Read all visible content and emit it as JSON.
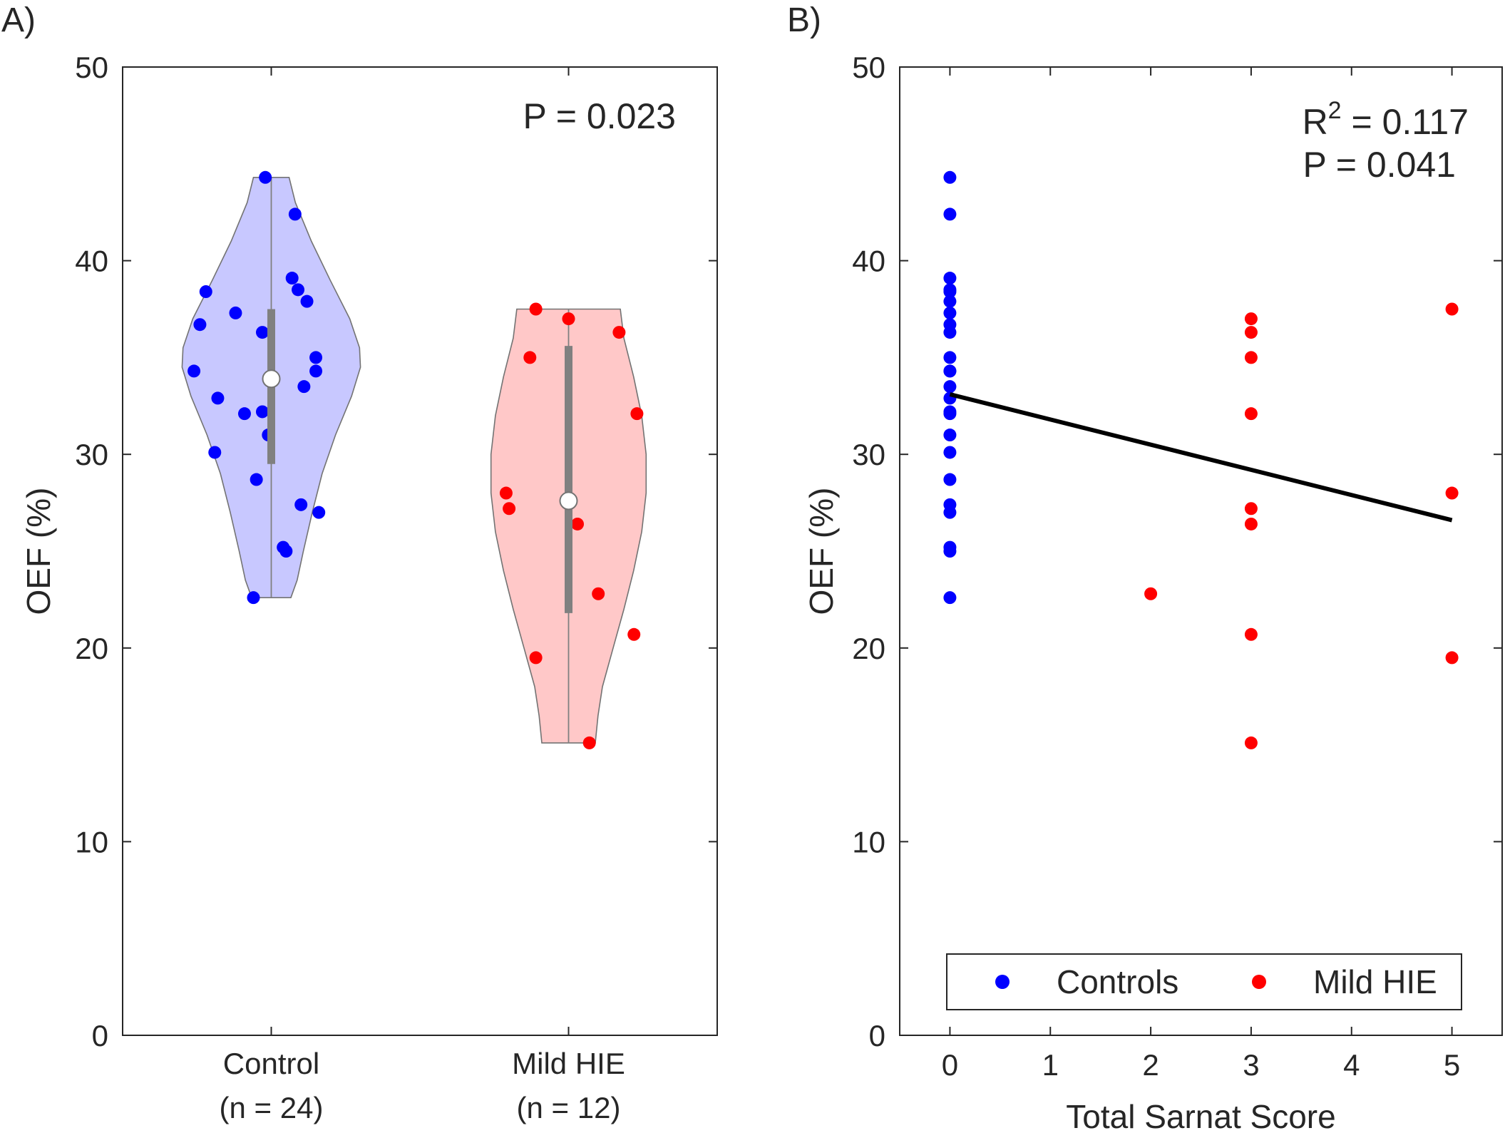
{
  "chart_data": [
    {
      "type": "violin",
      "panel_label": "A)",
      "title": "",
      "ylabel": "OEF (%)",
      "xlabel": "",
      "ylim": [
        0,
        50
      ],
      "yticks": [
        0,
        10,
        20,
        30,
        40,
        50
      ],
      "grid": false,
      "categories": [
        {
          "line1": "Control",
          "line2": "(n = 24)"
        },
        {
          "line1": "Mild HIE",
          "line2": "(n = 12)"
        }
      ],
      "annotation": "P = 0.023",
      "series": [
        {
          "name": "Control",
          "color": "#0000ff",
          "fill": "#c8c8ff",
          "median": 33.9,
          "q1": 29.5,
          "q3": 37.5,
          "min": 22.6,
          "max": 44.3,
          "profile": [
            [
              22.6,
              0.22
            ],
            [
              23.5,
              0.29
            ],
            [
              25,
              0.36
            ],
            [
              27,
              0.46
            ],
            [
              29,
              0.57
            ],
            [
              31,
              0.72
            ],
            [
              33,
              0.9
            ],
            [
              34.5,
              1.0
            ],
            [
              35.5,
              0.99
            ],
            [
              37,
              0.88
            ],
            [
              39,
              0.66
            ],
            [
              41,
              0.45
            ],
            [
              43,
              0.27
            ],
            [
              44.3,
              0.2
            ]
          ],
          "points": [
            [
              -0.02,
              44.3
            ],
            [
              0.08,
              42.4
            ],
            [
              0.07,
              39.1
            ],
            [
              0.09,
              38.5
            ],
            [
              0.12,
              37.9
            ],
            [
              -0.22,
              38.4
            ],
            [
              -0.12,
              37.3
            ],
            [
              -0.24,
              36.7
            ],
            [
              -0.03,
              36.3
            ],
            [
              0.15,
              35.0
            ],
            [
              0.15,
              34.3
            ],
            [
              -0.26,
              34.3
            ],
            [
              0.11,
              33.5
            ],
            [
              -0.18,
              32.9
            ],
            [
              -0.09,
              32.1
            ],
            [
              -0.03,
              32.2
            ],
            [
              -0.01,
              31.0
            ],
            [
              -0.19,
              30.1
            ],
            [
              -0.05,
              28.7
            ],
            [
              0.1,
              27.4
            ],
            [
              0.16,
              27.0
            ],
            [
              0.04,
              25.2
            ],
            [
              0.05,
              25.0
            ],
            [
              -0.06,
              22.6
            ]
          ]
        },
        {
          "name": "Mild HIE",
          "color": "#ff0000",
          "fill": "#ffc8c8",
          "median": 27.6,
          "q1": 21.8,
          "q3": 35.6,
          "min": 15.1,
          "max": 37.5,
          "profile": [
            [
              15.1,
              0.3
            ],
            [
              16.5,
              0.33
            ],
            [
              18,
              0.38
            ],
            [
              20,
              0.5
            ],
            [
              22,
              0.62
            ],
            [
              24,
              0.73
            ],
            [
              26,
              0.82
            ],
            [
              28,
              0.87
            ],
            [
              30,
              0.87
            ],
            [
              32,
              0.82
            ],
            [
              34,
              0.73
            ],
            [
              36,
              0.62
            ],
            [
              37.5,
              0.58
            ]
          ],
          "points": [
            [
              -0.11,
              37.5
            ],
            [
              0.0,
              37.0
            ],
            [
              0.17,
              36.3
            ],
            [
              -0.13,
              35.0
            ],
            [
              0.23,
              32.1
            ],
            [
              -0.21,
              28.0
            ],
            [
              -0.2,
              27.2
            ],
            [
              0.03,
              26.4
            ],
            [
              0.1,
              22.8
            ],
            [
              0.22,
              20.7
            ],
            [
              -0.11,
              19.5
            ],
            [
              0.07,
              15.1
            ]
          ]
        }
      ]
    },
    {
      "type": "scatter",
      "panel_label": "B)",
      "title": "",
      "xlabel": "Total Sarnat Score",
      "ylabel": "OEF (%)",
      "xlim": [
        -0.5,
        5.5
      ],
      "ylim": [
        0,
        50
      ],
      "xticks": [
        0,
        1,
        2,
        3,
        4,
        5
      ],
      "yticks": [
        0,
        10,
        20,
        30,
        40,
        50
      ],
      "grid": false,
      "annotation": {
        "r2_prefix": "R",
        "r2_sup": "2",
        "r2_value": " = 0.117",
        "p_text": "P = 0.041"
      },
      "legend": {
        "placement": "bottom",
        "entries": [
          "Controls",
          "Mild HIE"
        ]
      },
      "fit_line": {
        "x": [
          0,
          5
        ],
        "y": [
          33.1,
          26.6
        ],
        "color": "#000000"
      },
      "series": [
        {
          "name": "Controls",
          "color": "#0000ff",
          "x": [
            0,
            0,
            0,
            0,
            0,
            0,
            0,
            0,
            0,
            0,
            0,
            0,
            0,
            0,
            0,
            0,
            0,
            0,
            0,
            0,
            0,
            0,
            0,
            0
          ],
          "y": [
            44.3,
            42.4,
            39.1,
            38.5,
            38.4,
            37.9,
            37.3,
            36.7,
            36.3,
            35.0,
            34.3,
            34.3,
            33.5,
            32.9,
            32.2,
            32.1,
            31.0,
            30.1,
            28.7,
            27.4,
            27.0,
            25.2,
            25.0,
            22.6
          ]
        },
        {
          "name": "Mild HIE",
          "color": "#ff0000",
          "x": [
            2,
            3,
            3,
            3,
            3,
            3,
            3,
            3,
            3,
            5,
            5,
            5
          ],
          "y": [
            22.8,
            37.0,
            36.3,
            35.0,
            32.1,
            27.2,
            26.4,
            20.7,
            15.1,
            37.5,
            28.0,
            19.5
          ]
        }
      ]
    }
  ]
}
